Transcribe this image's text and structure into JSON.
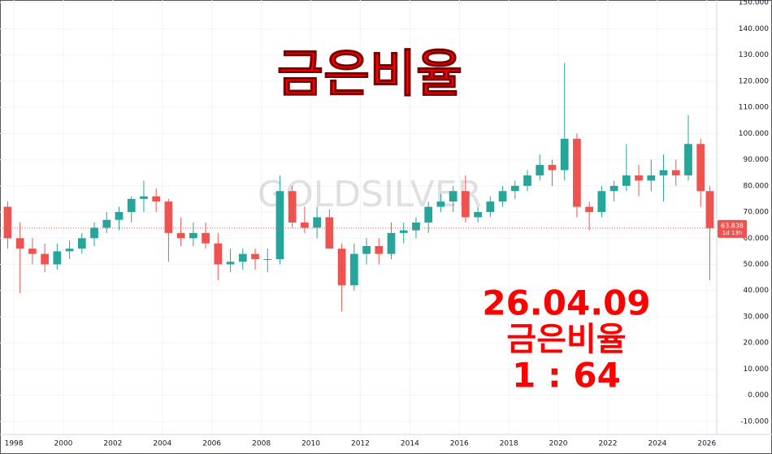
{
  "chart_data": {
    "type": "candlestick",
    "title": "금은비율",
    "watermark": "GOLDSILVER",
    "annotations": [
      "26.04.09",
      "금은비율",
      "1 : 64"
    ],
    "last_value": 63.838,
    "countdown": "1d 13h",
    "up_color": "#26a69a",
    "down_color": "#ef5350",
    "x": [
      1997.75,
      1998.25,
      1998.75,
      1999.25,
      1999.75,
      2000.25,
      2000.75,
      2001.25,
      2001.75,
      2002.25,
      2002.75,
      2003.25,
      2003.75,
      2004.25,
      2004.75,
      2005.25,
      2005.75,
      2006.25,
      2006.75,
      2007.25,
      2007.75,
      2008.25,
      2008.75,
      2009.25,
      2009.75,
      2010.25,
      2010.75,
      2011.25,
      2011.75,
      2012.25,
      2012.75,
      2013.25,
      2013.75,
      2014.25,
      2014.75,
      2015.25,
      2015.75,
      2016.25,
      2016.75,
      2017.25,
      2017.75,
      2018.25,
      2018.75,
      2019.25,
      2019.75,
      2020.25,
      2020.75,
      2021.25,
      2021.75,
      2022.25,
      2022.75,
      2023.25,
      2023.75,
      2024.25,
      2024.75,
      2025.25,
      2025.75,
      2026.12
    ],
    "open": [
      72,
      60,
      56,
      54,
      50,
      55,
      56,
      60,
      64,
      67,
      70,
      75,
      76,
      74,
      62,
      60,
      62,
      58,
      50,
      51,
      54,
      52,
      52,
      78,
      66,
      64,
      68,
      56,
      42,
      54,
      57,
      54,
      62,
      63,
      66,
      72,
      74,
      78,
      68,
      70,
      74,
      78,
      80,
      84,
      88,
      86,
      98,
      72,
      70,
      78,
      80,
      84,
      82,
      84,
      86,
      84,
      96,
      78
    ],
    "high": [
      74,
      66,
      60,
      58,
      58,
      59,
      62,
      66,
      70,
      72,
      76,
      82,
      79,
      75,
      68,
      66,
      66,
      62,
      56,
      56,
      56,
      56,
      84,
      80,
      72,
      72,
      71,
      58,
      58,
      60,
      60,
      66,
      66,
      68,
      74,
      77,
      80,
      84,
      72,
      76,
      80,
      82,
      86,
      92,
      90,
      127,
      100,
      74,
      80,
      82,
      96,
      88,
      90,
      92,
      90,
      107,
      98,
      80
    ],
    "low": [
      56,
      39,
      50,
      47,
      48,
      52,
      54,
      57,
      62,
      63,
      66,
      70,
      70,
      51,
      57,
      57,
      56,
      44,
      47,
      48,
      48,
      47,
      50,
      64,
      62,
      60,
      56,
      32,
      40,
      50,
      50,
      52,
      58,
      60,
      62,
      70,
      70,
      66,
      66,
      68,
      72,
      75,
      78,
      82,
      80,
      82,
      68,
      63,
      68,
      74,
      78,
      76,
      78,
      74,
      80,
      82,
      72,
      44
    ],
    "close": [
      60,
      56,
      54,
      50,
      55,
      56,
      60,
      64,
      67,
      70,
      75,
      76,
      74,
      62,
      60,
      62,
      58,
      50,
      51,
      54,
      52,
      52,
      78,
      66,
      64,
      68,
      56,
      42,
      54,
      57,
      54,
      62,
      63,
      66,
      72,
      74,
      78,
      68,
      70,
      74,
      78,
      80,
      84,
      88,
      86,
      98,
      72,
      70,
      78,
      80,
      84,
      82,
      84,
      86,
      84,
      96,
      78,
      63.838
    ],
    "xlim": [
      1997.44,
      2026.4
    ],
    "xticks": [
      1998,
      2000,
      2002,
      2004,
      2006,
      2008,
      2010,
      2012,
      2014,
      2016,
      2018,
      2020,
      2022,
      2024,
      2026
    ],
    "ylim": [
      -15,
      151
    ],
    "yticks": [
      {
        "value": -10,
        "label": "-10.000"
      },
      {
        "value": 0,
        "label": "0.000"
      },
      {
        "value": 10,
        "label": "10.000"
      },
      {
        "value": 20,
        "label": "20.000"
      },
      {
        "value": 30,
        "label": "30.000"
      },
      {
        "value": 40,
        "label": "40.000"
      },
      {
        "value": 50,
        "label": "50.000"
      },
      {
        "value": 60,
        "label": "60.000"
      },
      {
        "value": 70,
        "label": "70.000"
      },
      {
        "value": 80,
        "label": "80.000"
      },
      {
        "value": 90,
        "label": "90.000"
      },
      {
        "value": 100,
        "label": "100.000"
      },
      {
        "value": 110,
        "label": "110.000"
      },
      {
        "value": 120,
        "label": "120.000"
      },
      {
        "value": 130,
        "label": "130.000"
      },
      {
        "value": 140,
        "label": "140.000"
      },
      {
        "value": 150,
        "label": "150.000"
      }
    ],
    "grid": true
  }
}
